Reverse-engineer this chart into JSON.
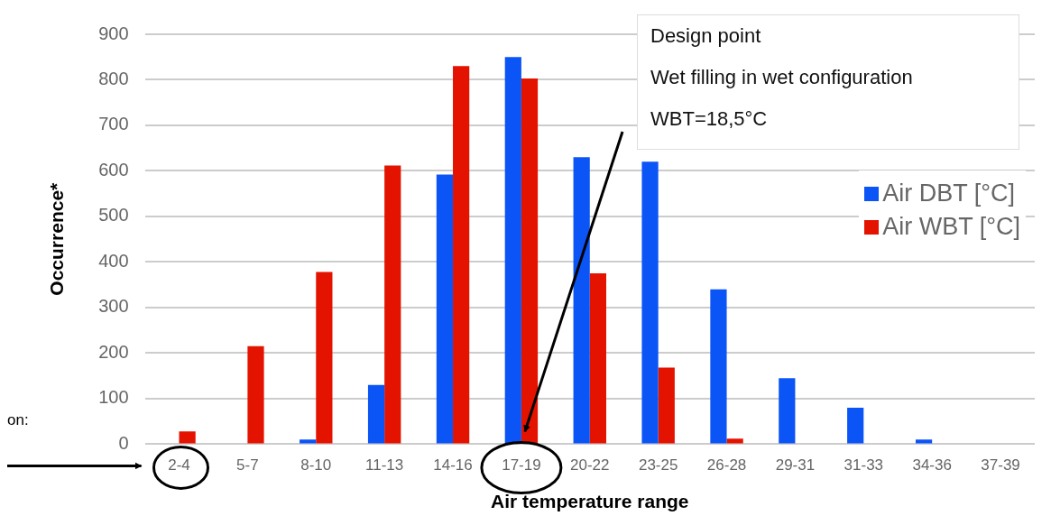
{
  "chart_data": {
    "type": "bar",
    "xlabel": "Air temperature range",
    "ylabel": "Occurrence*",
    "categories": [
      "2-4",
      "5-7",
      "8-10",
      "11-13",
      "14-16",
      "17-19",
      "20-22",
      "23-25",
      "26-28",
      "29-31",
      "31-33",
      "34-36",
      "37-39"
    ],
    "series": [
      {
        "name": "Air DBT [°C]",
        "color": "#0b54f5",
        "values": [
          0,
          0,
          10,
          130,
          592,
          850,
          630,
          620,
          340,
          145,
          80,
          10,
          0
        ]
      },
      {
        "name": "Air WBT [°C]",
        "color": "#e31300",
        "values": [
          28,
          215,
          378,
          612,
          830,
          803,
          375,
          168,
          12,
          0,
          0,
          0,
          0
        ]
      }
    ],
    "ylim": [
      0,
      900
    ],
    "yticks": [
      0,
      100,
      200,
      300,
      400,
      500,
      600,
      700,
      800,
      900
    ],
    "grid": "y",
    "legend": "right",
    "annotations": [
      "on:",
      "Design point",
      "Wet filling in wet configuration",
      "WBT=18,5°C"
    ]
  }
}
